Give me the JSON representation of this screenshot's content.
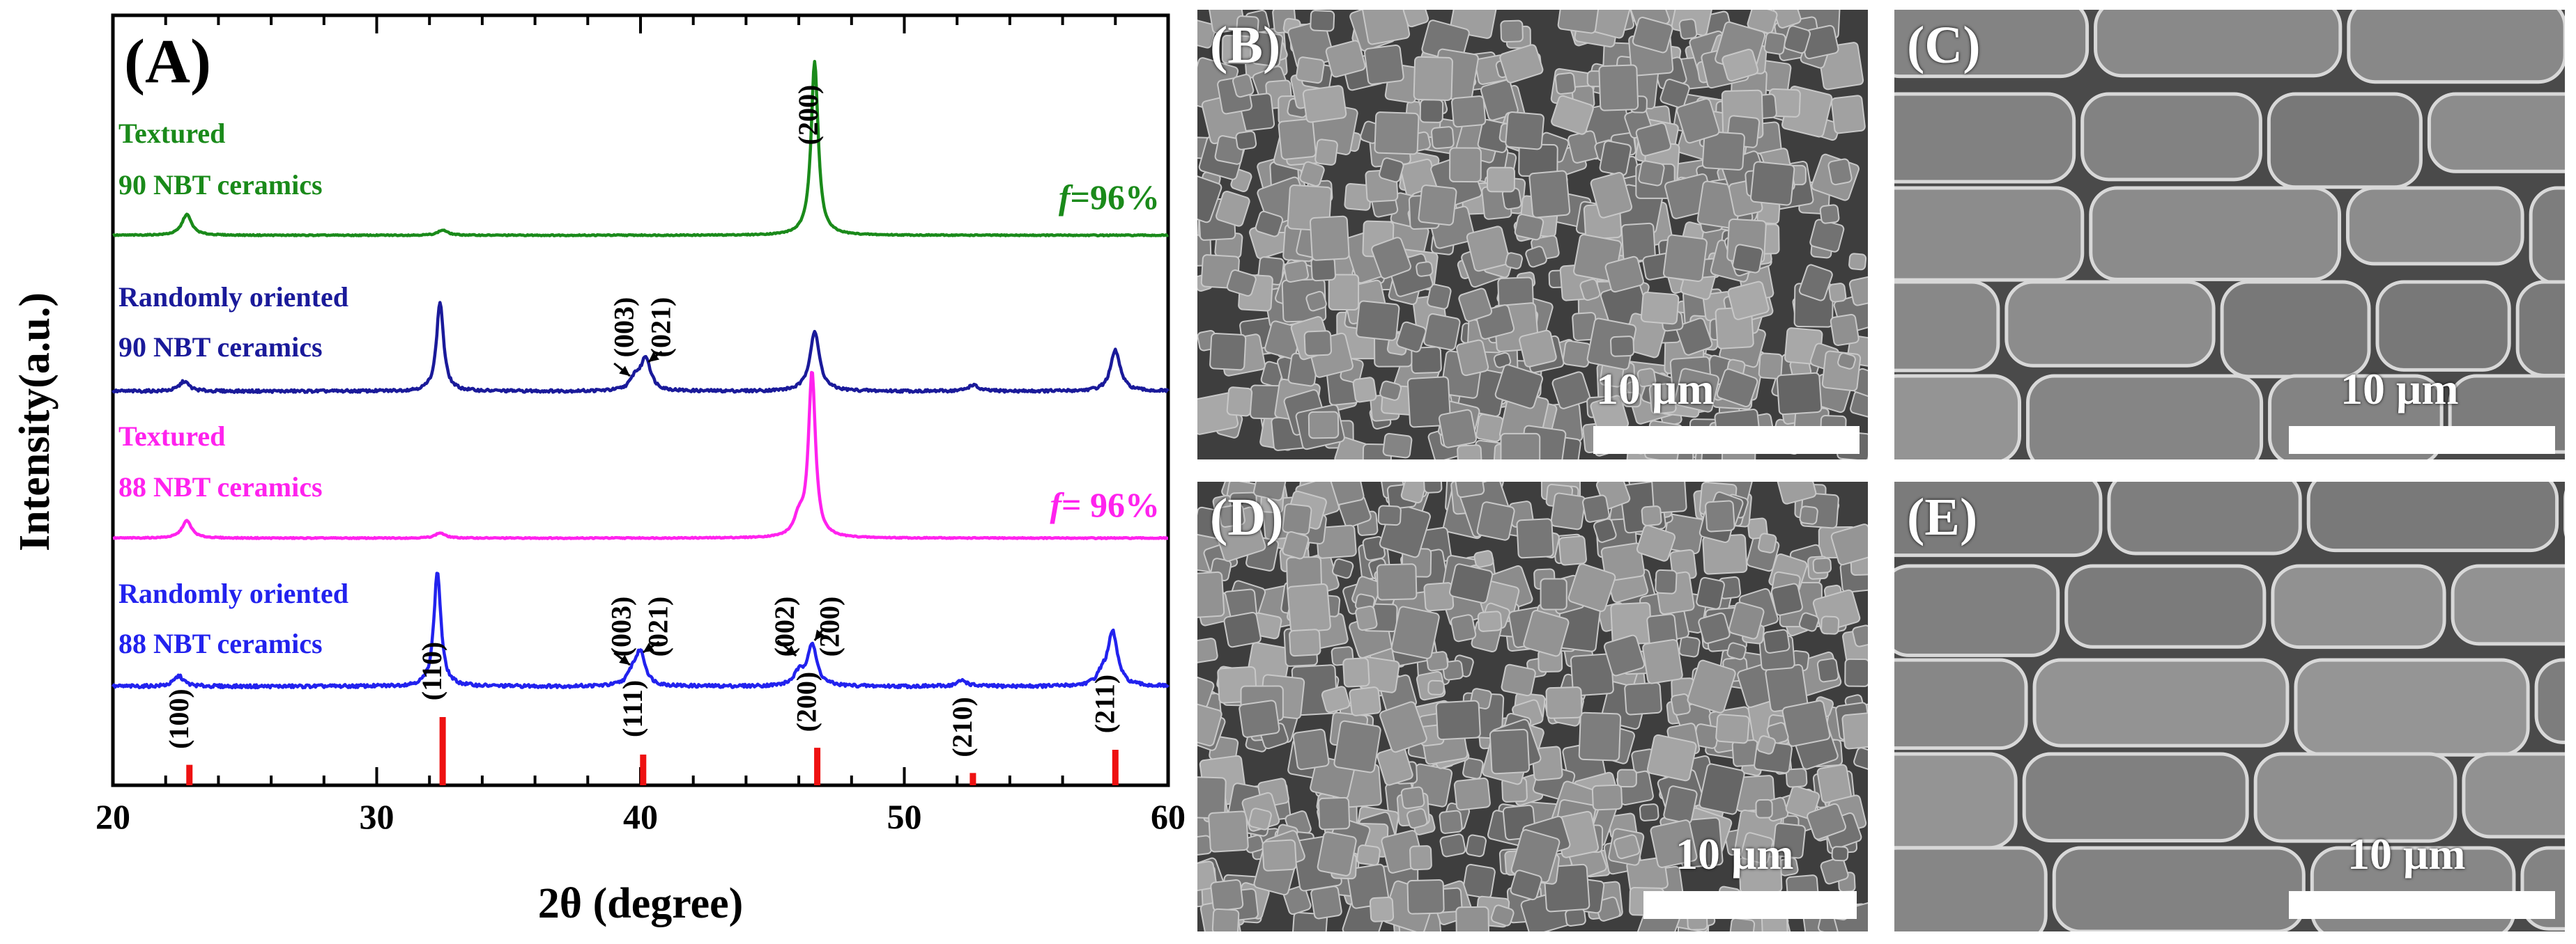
{
  "chart_data": {
    "type": "line",
    "panel_label": "(A)",
    "xlabel": "2θ (degree)",
    "ylabel": "Intensity(a.u.)",
    "xlim": [
      20,
      60
    ],
    "xticks": [
      20,
      30,
      40,
      50,
      60
    ],
    "grid": false,
    "series": [
      {
        "name_lines": [
          "Textured",
          "90 NBT ceramics"
        ],
        "color": "#1a8a1a",
        "annotation": "=96%",
        "annotation_prefix": "f",
        "peaks": [
          {
            "x": 22.8,
            "h": 0.12
          },
          {
            "x": 32.5,
            "h": 0.03
          },
          {
            "x": 46.6,
            "h": 1.0
          }
        ],
        "peak_labels": [
          {
            "x": 46.4,
            "text": "(200)"
          }
        ]
      },
      {
        "name_lines": [
          "Randomly oriented",
          "90 NBT ceramics"
        ],
        "color": "#1a1a9a",
        "peaks": [
          {
            "x": 22.7,
            "h": 0.08
          },
          {
            "x": 32.4,
            "h": 0.72
          },
          {
            "x": 39.8,
            "h": 0.1
          },
          {
            "x": 40.2,
            "h": 0.26
          },
          {
            "x": 46.6,
            "h": 0.48
          },
          {
            "x": 52.6,
            "h": 0.05
          },
          {
            "x": 58.0,
            "h": 0.33
          }
        ],
        "peak_labels": [
          {
            "x": 39.4,
            "text": "(003)"
          },
          {
            "x": 40.8,
            "text": "(021)"
          }
        ]
      },
      {
        "name_lines": [
          "Textured",
          "88 NBT ceramics"
        ],
        "color": "#ff22ee",
        "annotation": "= 96%",
        "annotation_prefix": "f",
        "peaks": [
          {
            "x": 22.8,
            "h": 0.1
          },
          {
            "x": 32.4,
            "h": 0.03
          },
          {
            "x": 46.0,
            "h": 0.1
          },
          {
            "x": 46.5,
            "h": 0.95
          }
        ],
        "peak_labels": []
      },
      {
        "name_lines": [
          "Randomly oriented",
          "88 NBT ceramics"
        ],
        "color": "#2222ee",
        "peaks": [
          {
            "x": 22.5,
            "h": 0.07
          },
          {
            "x": 32.3,
            "h": 0.78
          },
          {
            "x": 39.7,
            "h": 0.08
          },
          {
            "x": 40.0,
            "h": 0.22
          },
          {
            "x": 46.0,
            "h": 0.08
          },
          {
            "x": 46.5,
            "h": 0.28
          },
          {
            "x": 52.2,
            "h": 0.04
          },
          {
            "x": 57.5,
            "h": 0.07
          },
          {
            "x": 57.9,
            "h": 0.36
          }
        ],
        "peak_labels": [
          {
            "x": 39.3,
            "text": "(003)"
          },
          {
            "x": 40.7,
            "text": "(021)"
          },
          {
            "x": 45.5,
            "text": "(002)"
          },
          {
            "x": 47.2,
            "text": "(200)"
          }
        ]
      }
    ],
    "reference_pattern": {
      "color": "#ee1111",
      "lines": [
        {
          "x": 22.9,
          "h": 0.3,
          "label": "(100)"
        },
        {
          "x": 32.5,
          "h": 1.0,
          "label": "(110)"
        },
        {
          "x": 40.1,
          "h": 0.45,
          "label": "(111)"
        },
        {
          "x": 46.7,
          "h": 0.55,
          "label": "(200)"
        },
        {
          "x": 52.6,
          "h": 0.18,
          "label": "(210)"
        },
        {
          "x": 58.0,
          "h": 0.52,
          "label": "(211)"
        }
      ]
    }
  },
  "sem_panels": [
    {
      "label": "(B)",
      "scale_text": "10 μm"
    },
    {
      "label": "(C)",
      "scale_text": "10 μm"
    },
    {
      "label": "(D)",
      "scale_text": "10 μm"
    },
    {
      "label": "(E)",
      "scale_text": "10 μm"
    }
  ]
}
